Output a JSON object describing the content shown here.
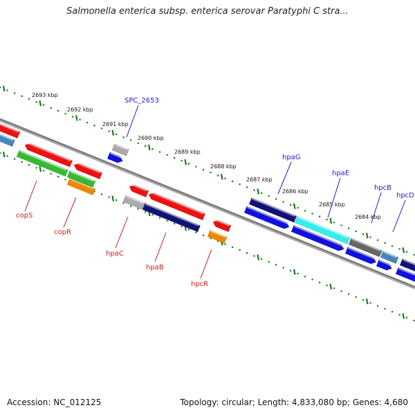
{
  "title": "Salmonella enterica subsp. enterica serovar Paratyphi C stra...",
  "accession": "Accession: NC_012125",
  "summary": "Topology: circular; Length: 4,833,080 bp; Genes: 4,680",
  "colors": {
    "ruler": "#1a7a1a",
    "backbone": "#888888",
    "label_forward": "#1a1acc",
    "label_reverse": "#cc1a1a"
  },
  "ticks": [
    {
      "label": "2693 kbp"
    },
    {
      "label": "2692 kbp"
    },
    {
      "label": "2691 kbp"
    },
    {
      "label": "2690 kbp"
    },
    {
      "label": "2689 kbp"
    },
    {
      "label": "2688 kbp"
    },
    {
      "label": "2687 kbp"
    },
    {
      "label": "2686 kbp"
    },
    {
      "label": "2685 kbp"
    },
    {
      "label": "2684 kbp"
    }
  ],
  "gene_labels": [
    {
      "name": "SPC_2653",
      "strand": "forward"
    },
    {
      "name": "hpaG",
      "strand": "forward"
    },
    {
      "name": "hpaE",
      "strand": "forward"
    },
    {
      "name": "hpcB",
      "strand": "forward"
    },
    {
      "name": "hpcD",
      "strand": "forward"
    },
    {
      "name": "copS",
      "strand": "reverse"
    },
    {
      "name": "copR",
      "strand": "reverse"
    },
    {
      "name": "hpaC",
      "strand": "reverse"
    },
    {
      "name": "hpaB",
      "strand": "reverse"
    },
    {
      "name": "hpcR",
      "strand": "reverse"
    }
  ]
}
